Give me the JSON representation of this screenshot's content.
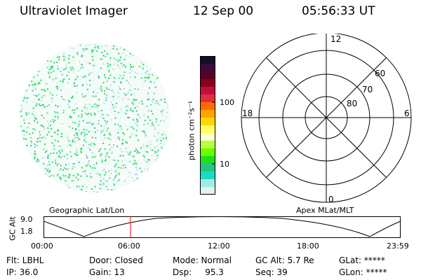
{
  "header": {
    "instrument": "Ultraviolet Imager",
    "date": "12 Sep 00",
    "time": "05:56:33 UT"
  },
  "colorbar": {
    "unit_label": "photon cm⁻²s⁻¹",
    "tick_100": "100",
    "tick_10": "10",
    "colors": [
      "#1a0a2e",
      "#3b0a3b",
      "#5a0020",
      "#8a0020",
      "#c0103a",
      "#e03040",
      "#ff6a00",
      "#ffa500",
      "#ffd700",
      "#ffff66",
      "#ffffcc",
      "#b8ff40",
      "#66ff00",
      "#22dd22",
      "#22c87a",
      "#20d8c8",
      "#a0ece4",
      "#ddf4f0"
    ]
  },
  "polar_plot": {
    "mlt_12": "12",
    "mlt_18": "18",
    "mlt_6": "6",
    "mlt_0": "0",
    "lat_60": "60",
    "lat_70": "70",
    "lat_80": "80"
  },
  "timeline": {
    "left_title": "Geographic Lat/Lon",
    "right_title": "Apex  MLat/MLT",
    "y_axis_label": "GC Alt",
    "y_max": "9.0",
    "y_min": "1.8",
    "time_ticks": [
      "00:00",
      "06:00",
      "12:00",
      "18:00",
      "23:59"
    ],
    "marker_time": "05:56"
  },
  "status": {
    "flt": "Flt: LBHL",
    "ip": "IP: 36.0",
    "door": "Door: Closed",
    "gain": "Gain: 13",
    "mode": "Mode: Normal",
    "dsp": "Dsp:     95.3",
    "gc_alt": "GC Alt: 5.7 Re",
    "seq": "Seq: 39",
    "glat": "GLat: *****",
    "glon": "GLon: *****"
  }
}
